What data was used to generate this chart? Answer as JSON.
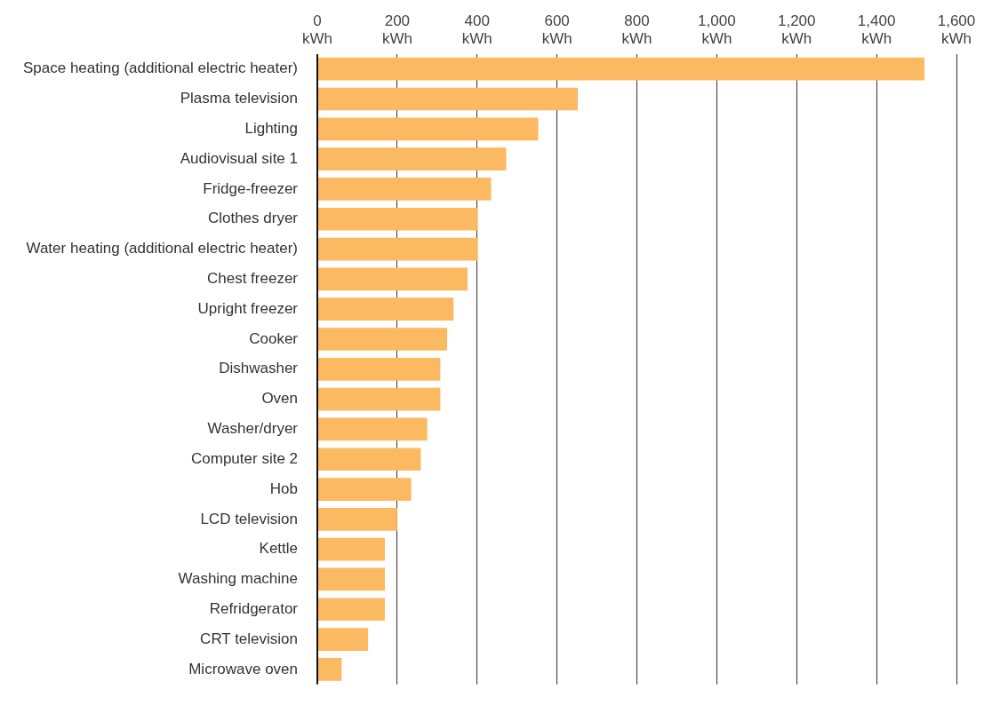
{
  "chart_data": {
    "type": "bar",
    "orientation": "horizontal",
    "categories": [
      "Space heating (additional electric heater)",
      "Plasma television",
      "Lighting",
      "Audiovisual site 1",
      "Fridge-freezer",
      "Clothes dryer",
      "Water heating (additional electric heater)",
      "Chest freezer",
      "Upright freezer",
      "Cooker",
      "Dishwasher",
      "Oven",
      "Washer/dryer",
      "Computer site 2",
      "Hob",
      "LCD television",
      "Kettle",
      "Washing machine",
      "Refridgerator",
      "CRT television",
      "Microwave oven"
    ],
    "values": [
      1520,
      652,
      553,
      473,
      435,
      402,
      402,
      376,
      341,
      325,
      308,
      308,
      275,
      259,
      235,
      200,
      169,
      169,
      169,
      127,
      61
    ],
    "color": "#fbb962",
    "xlim": [
      0,
      1600
    ],
    "xticks": [
      {
        "value": 0,
        "label": "0 kWh"
      },
      {
        "value": 200,
        "label": "200 kWh"
      },
      {
        "value": 400,
        "label": "400 kWh"
      },
      {
        "value": 600,
        "label": "600 kWh"
      },
      {
        "value": 800,
        "label": "800 kWh"
      },
      {
        "value": 1000,
        "label": "1,000 kWh"
      },
      {
        "value": 1200,
        "label": "1,200 kWh"
      },
      {
        "value": 1400,
        "label": "1,400 kWh"
      },
      {
        "value": 1600,
        "label": "1,600 kWh"
      }
    ],
    "grid": "x",
    "legend": false
  }
}
